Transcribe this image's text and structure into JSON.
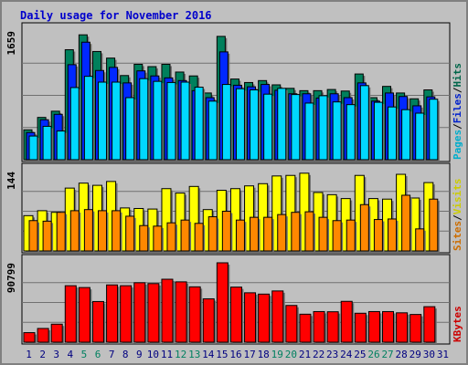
{
  "title": "Daily usage for November 2016",
  "colors": {
    "hits": "#00805c",
    "files": "#0028ff",
    "pages": "#00d8ff",
    "visits": "#ffff00",
    "sites": "#ff8800",
    "kbytes": "#ff0000",
    "weekend_day": "#008060",
    "weekday": "#000080"
  },
  "chart_data": [
    {
      "type": "bar",
      "title": "Daily usage for November 2016",
      "categories": [
        "1",
        "2",
        "3",
        "4",
        "5",
        "6",
        "7",
        "8",
        "9",
        "10",
        "11",
        "12",
        "13",
        "14",
        "15",
        "16",
        "17",
        "18",
        "19",
        "20",
        "21",
        "22",
        "23",
        "24",
        "25",
        "26",
        "27",
        "28",
        "29",
        "30",
        "31"
      ],
      "weekend_days": [
        "5",
        "6",
        "12",
        "13",
        "19",
        "20",
        "26",
        "27"
      ],
      "ylabel": "Pages / Files / Hits",
      "y_max_label": "1659",
      "ylim": [
        0,
        1659
      ],
      "grid": true,
      "series": [
        {
          "name": "Hits",
          "values": [
            385,
            545,
            625,
            1418,
            1610,
            1395,
            1310,
            1085,
            1230,
            1200,
            1230,
            1130,
            1080,
            860,
            1590,
            1040,
            995,
            1020,
            965,
            920,
            890,
            890,
            905,
            885,
            1105,
            800,
            945,
            860,
            785,
            900,
            null
          ]
        },
        {
          "name": "Files",
          "values": [
            350,
            515,
            585,
            1225,
            1515,
            1150,
            1190,
            990,
            1145,
            1080,
            1055,
            1020,
            890,
            800,
            1390,
            960,
            940,
            970,
            895,
            850,
            850,
            795,
            850,
            800,
            990,
            755,
            860,
            815,
            695,
            810,
            null
          ]
        },
        {
          "name": "Pages",
          "values": [
            305,
            430,
            370,
            930,
            1075,
            1000,
            1000,
            800,
            1045,
            1010,
            995,
            1000,
            935,
            755,
            970,
            915,
            900,
            845,
            920,
            840,
            730,
            825,
            745,
            710,
            955,
            740,
            680,
            645,
            600,
            780,
            null
          ]
        }
      ]
    },
    {
      "type": "bar",
      "categories": [
        "1",
        "2",
        "3",
        "4",
        "5",
        "6",
        "7",
        "8",
        "9",
        "10",
        "11",
        "12",
        "13",
        "14",
        "15",
        "16",
        "17",
        "18",
        "19",
        "20",
        "21",
        "22",
        "23",
        "24",
        "25",
        "26",
        "27",
        "28",
        "29",
        "30",
        "31"
      ],
      "ylabel": "Sites / Visits",
      "y_max_label": "144",
      "ylim": [
        0,
        144
      ],
      "grid": true,
      "series": [
        {
          "name": "Visits",
          "values": [
            64,
            73,
            70,
            114,
            123,
            119,
            126,
            78,
            77,
            76,
            113,
            105,
            117,
            75,
            110,
            113,
            118,
            122,
            136,
            137,
            141,
            106,
            102,
            95,
            137,
            95,
            94,
            139,
            96,
            124,
            null
          ]
        },
        {
          "name": "Sites",
          "values": [
            55,
            54,
            70,
            73,
            75,
            73,
            73,
            63,
            46,
            45,
            51,
            56,
            50,
            62,
            72,
            56,
            61,
            61,
            66,
            70,
            71,
            61,
            55,
            56,
            84,
            57,
            58,
            101,
            40,
            94,
            null
          ]
        }
      ]
    },
    {
      "type": "bar",
      "categories": [
        "1",
        "2",
        "3",
        "4",
        "5",
        "6",
        "7",
        "8",
        "9",
        "10",
        "11",
        "12",
        "13",
        "14",
        "15",
        "16",
        "17",
        "18",
        "19",
        "20",
        "21",
        "22",
        "23",
        "24",
        "25",
        "26",
        "27",
        "28",
        "29",
        "30",
        "31"
      ],
      "ylabel": "KBytes",
      "y_max_label": "90799",
      "ylim": [
        0,
        90799
      ],
      "grid": true,
      "series": [
        {
          "name": "KBytes",
          "values": [
            10900,
            15700,
            20600,
            64600,
            62500,
            46500,
            65500,
            64600,
            68000,
            67000,
            72000,
            69000,
            63300,
            49600,
            90799,
            63000,
            56500,
            55000,
            58600,
            42000,
            32000,
            35000,
            34800,
            46700,
            33100,
            35000,
            35000,
            33600,
            31700,
            40600,
            null
          ]
        }
      ]
    }
  ]
}
